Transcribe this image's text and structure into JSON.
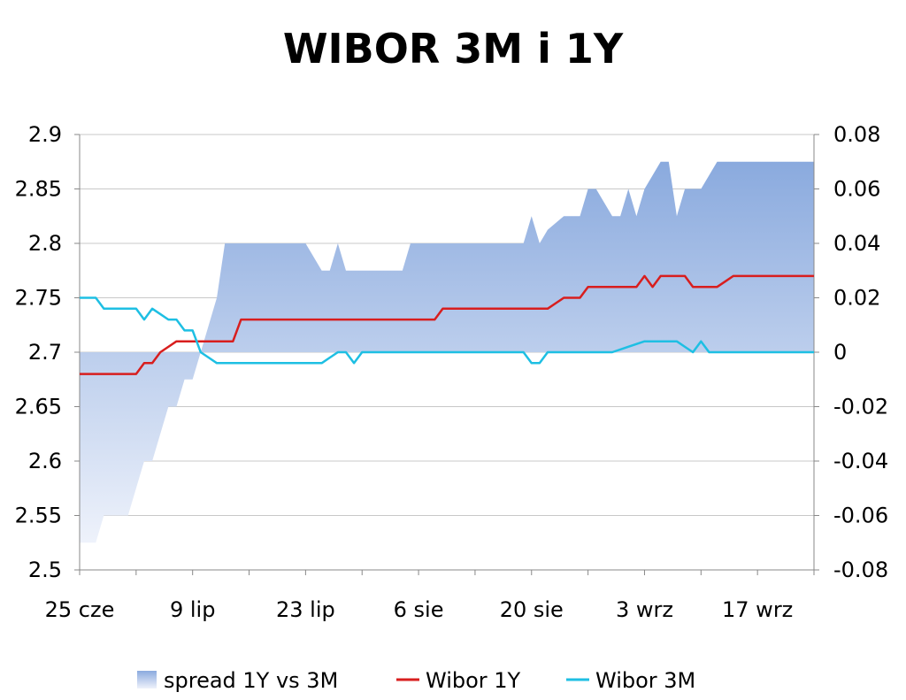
{
  "chart_data": {
    "type": "line",
    "title": "WIBOR 3M i 1Y",
    "xlabel": "",
    "ylabel": "",
    "x_tick_labels": [
      "25 cze",
      "9 lip",
      "23 lip",
      "6 sie",
      "20 sie",
      "3 wrz",
      "17 wrz"
    ],
    "x_range_days": [
      0,
      91
    ],
    "y_left_range": [
      2.5,
      2.9
    ],
    "y_left_ticks": [
      "2.5",
      "2.55",
      "2.6",
      "2.65",
      "2.7",
      "2.75",
      "2.8",
      "2.85",
      "2.9"
    ],
    "y_right_range": [
      -0.08,
      0.08
    ],
    "y_right_ticks": [
      "-0.08",
      "-0.06",
      "-0.04",
      "-0.02",
      "0",
      "0.02",
      "0.04",
      "0.06",
      "0.08"
    ],
    "grid": true,
    "legend_position": "bottom",
    "series": [
      {
        "name": "spread 1Y vs 3M",
        "kind": "area",
        "axis": "right",
        "color": "#8eaedf",
        "x": [
          0,
          2,
          3,
          4,
          6,
          7,
          8,
          9,
          10,
          11,
          12,
          13,
          14,
          15,
          16,
          17,
          18,
          19,
          20,
          21,
          22,
          25,
          28,
          30,
          31,
          32,
          33,
          34,
          35,
          38,
          40,
          41,
          42,
          45,
          47,
          50,
          53,
          55,
          56,
          57,
          58,
          60,
          62,
          63,
          64,
          65,
          66,
          67,
          68,
          69,
          70,
          71,
          72,
          73,
          74,
          75,
          76,
          77,
          79,
          80,
          81,
          82,
          83,
          84,
          85,
          88,
          91
        ],
        "values": [
          -0.07,
          -0.07,
          -0.06,
          -0.06,
          -0.06,
          -0.05,
          -0.04,
          -0.04,
          -0.03,
          -0.02,
          -0.02,
          -0.01,
          -0.01,
          0,
          0.01,
          0.02,
          0.04,
          0.04,
          0.04,
          0.04,
          0.04,
          0.04,
          0.04,
          0.03,
          0.03,
          0.04,
          0.03,
          0.03,
          0.03,
          0.03,
          0.03,
          0.04,
          0.04,
          0.04,
          0.04,
          0.04,
          0.04,
          0.04,
          0.05,
          0.04,
          0.045,
          0.05,
          0.05,
          0.06,
          0.06,
          0.055,
          0.05,
          0.05,
          0.06,
          0.05,
          0.06,
          0.065,
          0.07,
          0.07,
          0.05,
          0.06,
          0.06,
          0.06,
          0.07,
          0.07,
          0.07,
          0.07,
          0.07,
          0.07,
          0.07,
          0.07,
          0.07
        ]
      },
      {
        "name": "Wibor 1Y",
        "kind": "line",
        "axis": "left",
        "color": "#d81e1e",
        "x": [
          0,
          2,
          4,
          6,
          7,
          8,
          9,
          10,
          11,
          12,
          13,
          14,
          15,
          16,
          17,
          18,
          19,
          20,
          21,
          22,
          25,
          28,
          30,
          32,
          35,
          38,
          40,
          42,
          44,
          45,
          47,
          50,
          53,
          55,
          57,
          58,
          59,
          60,
          62,
          63,
          64,
          65,
          66,
          67,
          68,
          69,
          70,
          71,
          72,
          73,
          74,
          75,
          76,
          77,
          78,
          79,
          80,
          81,
          82,
          83,
          84,
          85,
          88,
          91
        ],
        "values": [
          2.68,
          2.68,
          2.68,
          2.68,
          2.68,
          2.69,
          2.69,
          2.7,
          2.705,
          2.71,
          2.71,
          2.71,
          2.71,
          2.71,
          2.71,
          2.71,
          2.71,
          2.73,
          2.73,
          2.73,
          2.73,
          2.73,
          2.73,
          2.73,
          2.73,
          2.73,
          2.73,
          2.73,
          2.73,
          2.74,
          2.74,
          2.74,
          2.74,
          2.74,
          2.74,
          2.74,
          2.745,
          2.75,
          2.75,
          2.76,
          2.76,
          2.76,
          2.76,
          2.76,
          2.76,
          2.76,
          2.77,
          2.76,
          2.77,
          2.77,
          2.77,
          2.77,
          2.76,
          2.76,
          2.76,
          2.76,
          2.765,
          2.77,
          2.77,
          2.77,
          2.77,
          2.77,
          2.77,
          2.77
        ]
      },
      {
        "name": "Wibor 3M",
        "kind": "line",
        "axis": "left",
        "color": "#1ebfe3",
        "x": [
          0,
          1,
          2,
          3,
          4,
          6,
          7,
          8,
          9,
          10,
          11,
          12,
          13,
          14,
          15,
          16,
          17,
          18,
          19,
          20,
          21,
          22,
          25,
          28,
          30,
          31,
          32,
          33,
          34,
          35,
          38,
          40,
          42,
          45,
          47,
          50,
          55,
          56,
          57,
          58,
          60,
          62,
          65,
          66,
          68,
          70,
          71,
          72,
          73,
          74,
          75,
          76,
          77,
          78,
          80,
          82,
          85,
          88,
          91
        ],
        "values": [
          2.75,
          2.75,
          2.75,
          2.74,
          2.74,
          2.74,
          2.74,
          2.73,
          2.74,
          2.735,
          2.73,
          2.73,
          2.72,
          2.72,
          2.7,
          2.695,
          2.69,
          2.69,
          2.69,
          2.69,
          2.69,
          2.69,
          2.69,
          2.69,
          2.69,
          2.695,
          2.7,
          2.7,
          2.69,
          2.7,
          2.7,
          2.7,
          2.7,
          2.7,
          2.7,
          2.7,
          2.7,
          2.69,
          2.69,
          2.7,
          2.7,
          2.7,
          2.7,
          2.7,
          2.705,
          2.71,
          2.71,
          2.71,
          2.71,
          2.71,
          2.705,
          2.7,
          2.71,
          2.7,
          2.7,
          2.7,
          2.7,
          2.7,
          2.7
        ]
      }
    ]
  }
}
